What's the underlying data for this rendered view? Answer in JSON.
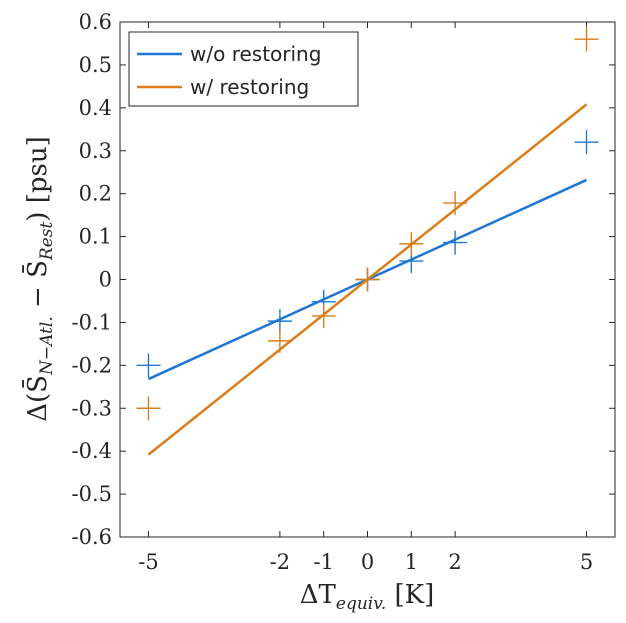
{
  "chart_data": {
    "type": "scatter",
    "x_ticks": [
      "-5",
      "-2",
      "-1",
      "0",
      "1",
      "2",
      "5"
    ],
    "y_ticks": [
      "-0.6",
      "-0.5",
      "-0.4",
      "-0.3",
      "-0.2",
      "-0.1",
      "0",
      "0.1",
      "0.2",
      "0.3",
      "0.4",
      "0.5",
      "0.6"
    ],
    "xlim": [
      -5.65,
      5.65
    ],
    "ylim": [
      -0.6,
      0.6
    ],
    "xlabel": {
      "pre": "ΔT",
      "sub": "equiv.",
      "post": " [K]"
    },
    "ylabel": {
      "pre": "Δ(S̄",
      "sub1": "N−Atl.",
      "mid": " − S̄",
      "sub2": "Rest",
      "post": ") [psu]"
    },
    "legend": {
      "position": "top-left"
    },
    "series": [
      {
        "name": "w/o restoring",
        "color": "#1f77d4",
        "points": [
          {
            "x": -5,
            "y": -0.2
          },
          {
            "x": -2,
            "y": -0.097
          },
          {
            "x": -1,
            "y": -0.052
          },
          {
            "x": 0,
            "y": 0.0
          },
          {
            "x": 1,
            "y": 0.043
          },
          {
            "x": 2,
            "y": 0.086
          },
          {
            "x": 5,
            "y": 0.32
          }
        ],
        "fit_line": [
          {
            "x": -5,
            "y": -0.232
          },
          {
            "x": 5,
            "y": 0.232
          }
        ]
      },
      {
        "name": "w/ restoring",
        "color": "#d97e1a",
        "points": [
          {
            "x": -5,
            "y": -0.3
          },
          {
            "x": -2,
            "y": -0.143
          },
          {
            "x": -1,
            "y": -0.085
          },
          {
            "x": 0,
            "y": 0.0
          },
          {
            "x": 1,
            "y": 0.083
          },
          {
            "x": 2,
            "y": 0.178
          },
          {
            "x": 5,
            "y": 0.56
          }
        ],
        "fit_line": [
          {
            "x": -5,
            "y": -0.408
          },
          {
            "x": 5,
            "y": 0.408
          }
        ]
      }
    ]
  }
}
